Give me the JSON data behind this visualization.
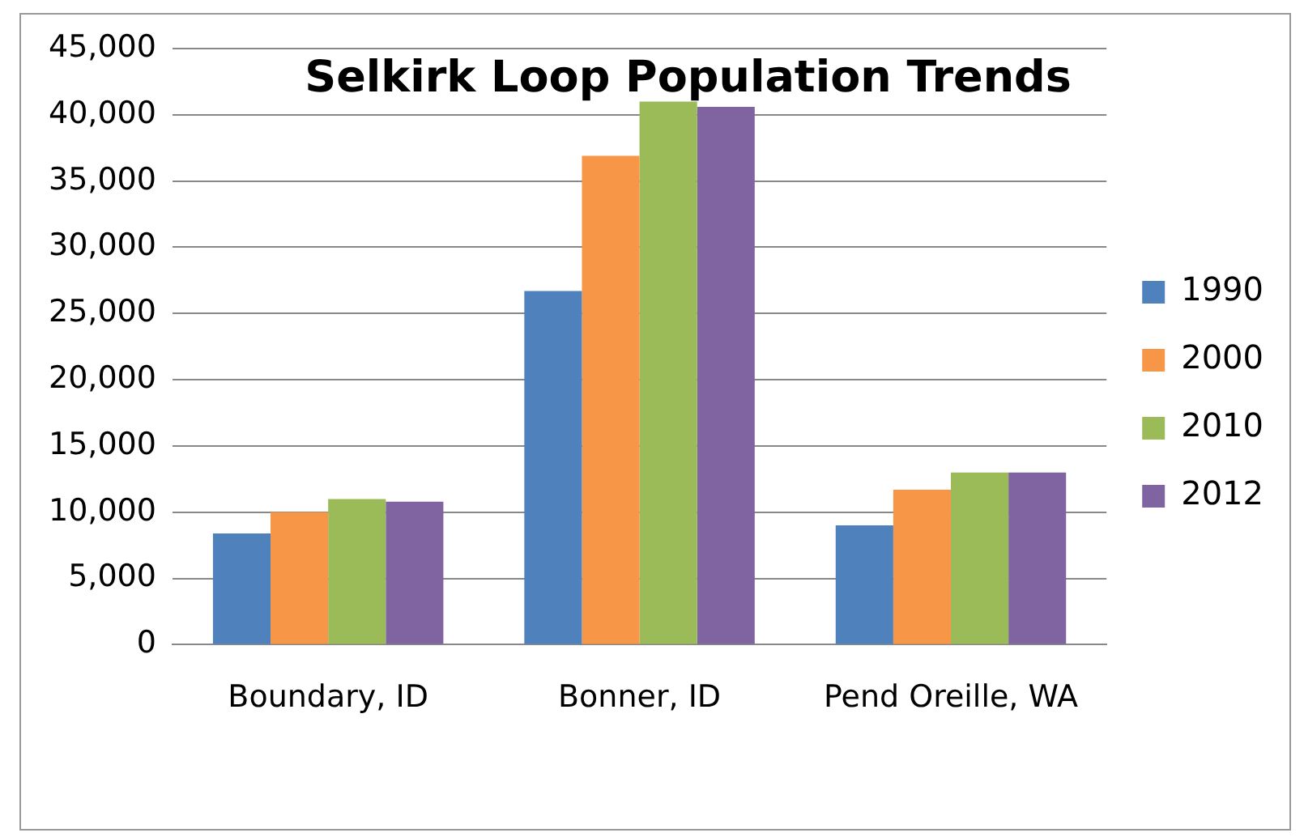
{
  "chart_data": {
    "type": "bar",
    "title": "Selkirk Loop Population Trends",
    "categories": [
      "Boundary, ID",
      "Bonner, ID",
      "Pend Oreille, WA"
    ],
    "series": [
      {
        "name": "1990",
        "color": "#4f81bd",
        "values": [
          8400,
          26700,
          9000
        ]
      },
      {
        "name": "2000",
        "color": "#f79646",
        "values": [
          10000,
          36900,
          11700
        ]
      },
      {
        "name": "2010",
        "color": "#9bbb59",
        "values": [
          11000,
          41000,
          13000
        ]
      },
      {
        "name": "2012",
        "color": "#8064a2",
        "values": [
          10800,
          40600,
          13000
        ]
      }
    ],
    "ylim": [
      0,
      45000
    ],
    "yticks": [
      0,
      {
        "value": 5000,
        "label": "5,000"
      },
      {
        "value": 10000,
        "label": "10,000"
      },
      {
        "value": 15000,
        "label": "15,000"
      },
      {
        "value": 20000,
        "label": "20,000"
      },
      {
        "value": 25000,
        "label": "25,000"
      },
      {
        "value": 30000,
        "label": "30,000"
      },
      {
        "value": 35000,
        "label": "35,000"
      },
      {
        "value": 40000,
        "label": "40,000"
      },
      {
        "value": 45000,
        "label": "45,000"
      }
    ],
    "grid": "y",
    "legend": "right"
  }
}
